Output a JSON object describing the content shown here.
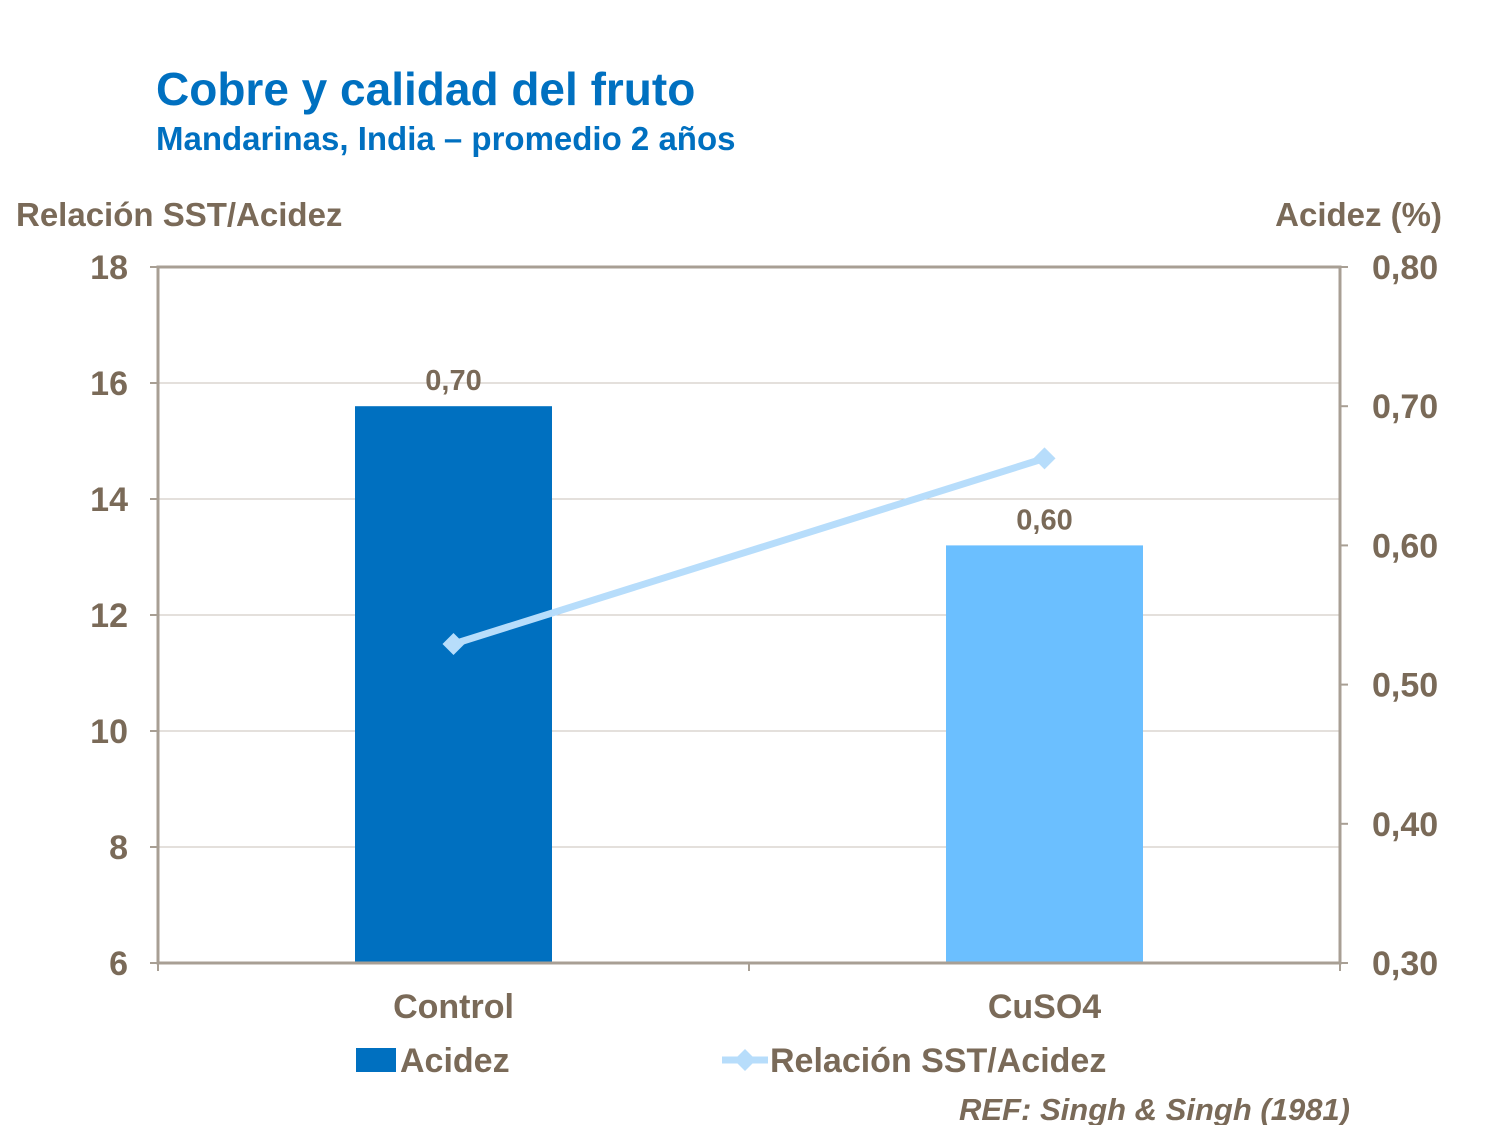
{
  "chart_data": {
    "type": "bar+line",
    "title": "Cobre y calidad del fruto",
    "subtitle": "Mandarinas, India – promedio 2 años",
    "categories": [
      "Control",
      "CuSO4"
    ],
    "series": [
      {
        "name": "Acidez",
        "type": "bar",
        "axis": "right",
        "values": [
          0.7,
          0.6
        ],
        "data_labels": [
          "0,70",
          "0,60"
        ],
        "colors": [
          "#0070C0",
          "#6BBFFF"
        ]
      },
      {
        "name": "Relación SST/Acidez",
        "type": "line",
        "axis": "left",
        "values": [
          11.5,
          14.7
        ],
        "color": "#B7DDFB",
        "marker": "diamond"
      }
    ],
    "y_left": {
      "label": "Relación SST/Acidez",
      "range": [
        6,
        18
      ],
      "ticks": [
        "6",
        "8",
        "10",
        "12",
        "14",
        "16",
        "18"
      ]
    },
    "y_right": {
      "label": "Acidez (%)",
      "range": [
        0.3,
        0.8
      ],
      "ticks": [
        "0,30",
        "0,40",
        "0,50",
        "0,60",
        "0,70",
        "0,80"
      ]
    },
    "grid": true,
    "legend": "bottom",
    "reference": "REF: Singh & Singh (1981)",
    "colors": {
      "title": "#0070C0",
      "text": "#7A6A58",
      "axis": "#A89F94",
      "grid": "#C8C0B8"
    }
  }
}
